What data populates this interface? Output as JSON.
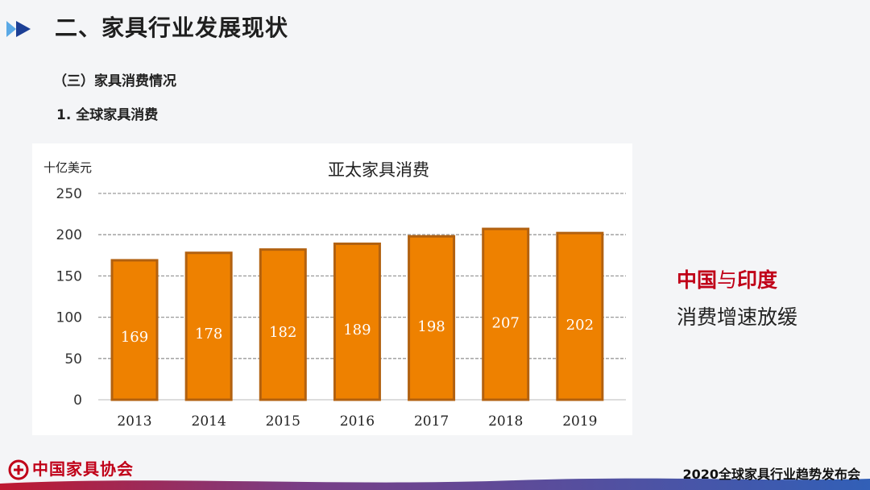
{
  "header": {
    "title": "二、家具行业发展现状",
    "section": "（三）家具消费情况",
    "subsection": "1. 全球家具消费"
  },
  "chart_data": {
    "type": "bar",
    "title": "亚太家具消费",
    "unit_label": "十亿美元",
    "xlabel": "",
    "ylabel": "十亿美元",
    "ylim": [
      0,
      250
    ],
    "yticks": [
      "0",
      "50",
      "100",
      "150",
      "200",
      "250"
    ],
    "categories": [
      "2013",
      "2014",
      "2015",
      "2016",
      "2017",
      "2018",
      "2019"
    ],
    "values": [
      169,
      178,
      182,
      189,
      198,
      207,
      202
    ],
    "data_labels": [
      "169",
      "178",
      "182",
      "189",
      "198",
      "207",
      "202"
    ],
    "bar_color": "#ee8100",
    "bar_border_color": "#b26110",
    "grid": "dashed"
  },
  "side_note": {
    "highlight1": "中国",
    "connector": "与",
    "highlight2": "印度",
    "line2": "消费增速放缓"
  },
  "footer": {
    "org_name": "中国家具协会",
    "event": "2020全球家具行业趋势发布会"
  },
  "colors": {
    "accent_red": "#c00018",
    "accent_blue": "#1c4fb0"
  }
}
